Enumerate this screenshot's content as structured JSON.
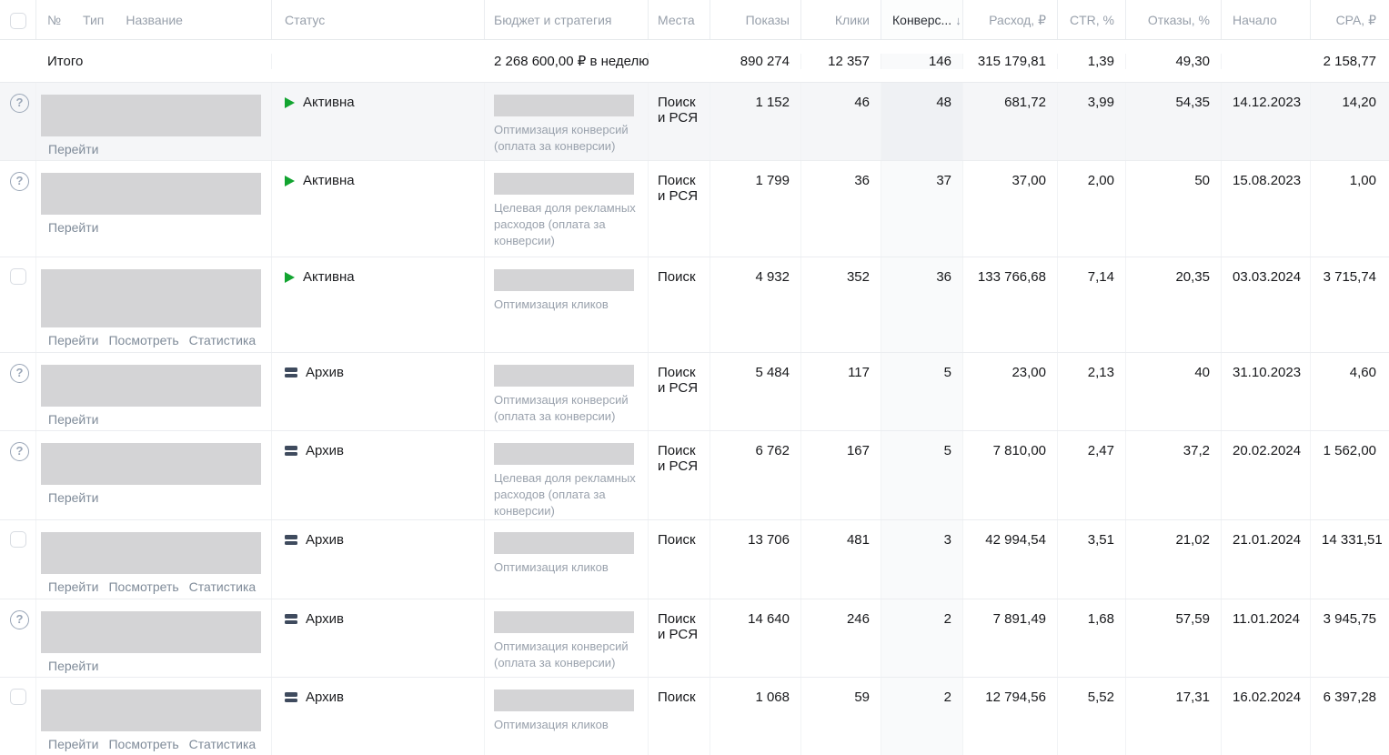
{
  "colors": {
    "active_green": "#12a430",
    "archive_slate": "#3f4b5e",
    "row_highlight": "#f5f6f8",
    "header_text": "#98a0ab",
    "link_text": "#7f8b99",
    "placeholder_gray": "#d4d4d6"
  },
  "icons": {
    "help": "?"
  },
  "header": {
    "col_num": "№",
    "col_type": "Тип",
    "col_name": "Название",
    "col_status": "Статус",
    "col_budget": "Бюджет и стратегия",
    "col_places": "Места",
    "col_impressions": "Показы",
    "col_clicks": "Клики",
    "col_conversions": "Конверс...",
    "sort_arrow": "↓",
    "col_spend": "Расход, ₽",
    "col_ctr": "CTR, %",
    "col_bounce": "Отказы, %",
    "col_start": "Начало",
    "col_cpa": "CPA, ₽"
  },
  "totals": {
    "label": "Итого",
    "budget": "2 268 600,00 ₽ в неделю",
    "impressions": "890 274",
    "clicks": "12 357",
    "conversions": "146",
    "spend": "315 179,81",
    "ctr": "1,39",
    "bounce": "49,30",
    "start": "",
    "cpa": "2 158,77"
  },
  "rows": [
    {
      "left_control": "help",
      "highlighted": true,
      "links": [
        "Перейти"
      ],
      "status": "active",
      "status_label": "Активна",
      "strategy": "Оптимизация конверсий (оплата за конверсии)",
      "places": "Поиск и РСЯ",
      "impressions": "1 152",
      "clicks": "46",
      "conversions": "48",
      "spend": "681,72",
      "ctr": "3,99",
      "bounce": "54,35",
      "start": "14.12.2023",
      "cpa": "14,20"
    },
    {
      "left_control": "help",
      "highlighted": false,
      "links": [
        "Перейти"
      ],
      "status": "active",
      "status_label": "Активна",
      "strategy": "Целевая доля рекламных расходов (оплата за конверсии)",
      "places": "Поиск и РСЯ",
      "impressions": "1 799",
      "clicks": "36",
      "conversions": "37",
      "spend": "37,00",
      "ctr": "2,00",
      "bounce": "50",
      "start": "15.08.2023",
      "cpa": "1,00"
    },
    {
      "left_control": "checkbox",
      "highlighted": false,
      "links": [
        "Перейти",
        "Посмотреть",
        "Статистика"
      ],
      "status": "active",
      "status_label": "Активна",
      "strategy": "Оптимизация кликов",
      "places": "Поиск",
      "impressions": "4 932",
      "clicks": "352",
      "conversions": "36",
      "spend": "133 766,68",
      "ctr": "7,14",
      "bounce": "20,35",
      "start": "03.03.2024",
      "cpa": "3 715,74"
    },
    {
      "left_control": "help",
      "highlighted": false,
      "links": [
        "Перейти"
      ],
      "status": "archive",
      "status_label": "Архив",
      "strategy": "Оптимизация конверсий (оплата за конверсии)",
      "places": "Поиск и РСЯ",
      "impressions": "5 484",
      "clicks": "117",
      "conversions": "5",
      "spend": "23,00",
      "ctr": "2,13",
      "bounce": "40",
      "start": "31.10.2023",
      "cpa": "4,60"
    },
    {
      "left_control": "help",
      "highlighted": false,
      "links": [
        "Перейти"
      ],
      "status": "archive",
      "status_label": "Архив",
      "strategy": "Целевая доля рекламных расходов (оплата за конверсии)",
      "places": "Поиск и РСЯ",
      "impressions": "6 762",
      "clicks": "167",
      "conversions": "5",
      "spend": "7 810,00",
      "ctr": "2,47",
      "bounce": "37,2",
      "start": "20.02.2024",
      "cpa": "1 562,00"
    },
    {
      "left_control": "checkbox",
      "highlighted": false,
      "links": [
        "Перейти",
        "Посмотреть",
        "Статистика"
      ],
      "status": "archive",
      "status_label": "Архив",
      "strategy": "Оптимизация кликов",
      "places": "Поиск",
      "impressions": "13 706",
      "clicks": "481",
      "conversions": "3",
      "spend": "42 994,54",
      "ctr": "3,51",
      "bounce": "21,02",
      "start": "21.01.2024",
      "cpa": "14 331,51"
    },
    {
      "left_control": "help",
      "highlighted": false,
      "links": [
        "Перейти"
      ],
      "status": "archive",
      "status_label": "Архив",
      "strategy": "Оптимизация конверсий (оплата за конверсии)",
      "places": "Поиск и РСЯ",
      "impressions": "14 640",
      "clicks": "246",
      "conversions": "2",
      "spend": "7 891,49",
      "ctr": "1,68",
      "bounce": "57,59",
      "start": "11.01.2024",
      "cpa": "3 945,75"
    },
    {
      "left_control": "checkbox",
      "highlighted": false,
      "links": [
        "Перейти",
        "Посмотреть",
        "Статистика"
      ],
      "status": "archive",
      "status_label": "Архив",
      "strategy": "Оптимизация кликов",
      "places": "Поиск",
      "impressions": "1 068",
      "clicks": "59",
      "conversions": "2",
      "spend": "12 794,56",
      "ctr": "5,52",
      "bounce": "17,31",
      "start": "16.02.2024",
      "cpa": "6 397,28"
    }
  ]
}
